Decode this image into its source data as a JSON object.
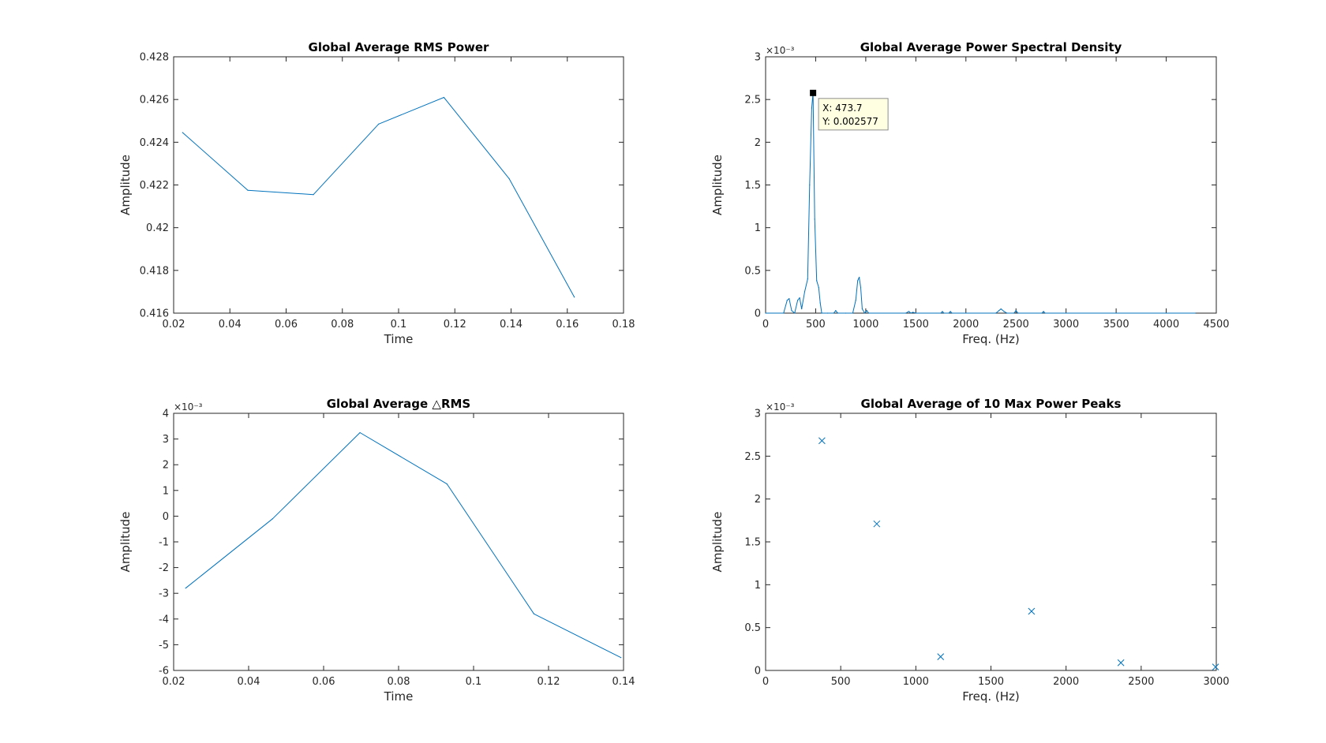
{
  "colors": {
    "series": "#0072BD",
    "axis": "#262626",
    "tooltip_bg": "#FFFFE1"
  },
  "chart_data": [
    {
      "id": "rms",
      "type": "line",
      "title": "Global Average RMS Power",
      "xlabel": "Time",
      "ylabel": "Amplitude",
      "xlim": [
        0.02,
        0.18
      ],
      "ylim": [
        0.416,
        0.428
      ],
      "xticks": [
        0.02,
        0.04,
        0.06,
        0.08,
        0.1,
        0.12,
        0.14,
        0.16,
        0.18
      ],
      "xtick_labels": [
        "0.02",
        "0.04",
        "0.06",
        "0.08",
        "0.1",
        "0.12",
        "0.14",
        "0.16",
        "0.18"
      ],
      "yticks": [
        0.416,
        0.418,
        0.42,
        0.422,
        0.424,
        0.426,
        0.428
      ],
      "ytick_labels": [
        "0.416",
        "0.418",
        "0.42",
        "0.422",
        "0.424",
        "0.426",
        "0.428"
      ],
      "exponent": "",
      "x": [
        0.0232,
        0.0464,
        0.0697,
        0.0929,
        0.1161,
        0.1393,
        0.1625
      ],
      "y": [
        0.42445,
        0.42175,
        0.42155,
        0.42485,
        0.4261,
        0.4223,
        0.41675
      ]
    },
    {
      "id": "psd",
      "type": "line",
      "title": "Global Average Power Spectral Density",
      "xlabel": "Freq. (Hz)",
      "ylabel": "Amplitude",
      "xlim": [
        0,
        4500
      ],
      "ylim": [
        0,
        3
      ],
      "xticks": [
        0,
        500,
        1000,
        1500,
        2000,
        2500,
        3000,
        3500,
        4000,
        4500
      ],
      "xtick_labels": [
        "0",
        "500",
        "1000",
        "1500",
        "2000",
        "2500",
        "3000",
        "3500",
        "4000",
        "4500"
      ],
      "yticks": [
        0,
        0.5,
        1,
        1.5,
        2,
        2.5,
        3
      ],
      "ytick_labels": [
        "0",
        "0.5",
        "1",
        "1.5",
        "2",
        "2.5",
        "3"
      ],
      "exponent": "×10⁻³",
      "x": [
        0,
        180,
        215,
        235,
        260,
        290,
        320,
        340,
        360,
        390,
        420,
        440,
        460,
        473.7,
        490,
        510,
        530,
        545,
        560,
        620,
        680,
        700,
        720,
        800,
        870,
        900,
        920,
        935,
        950,
        965,
        990,
        1010,
        1030,
        1400,
        1430,
        1450,
        1470,
        1500,
        1750,
        1765,
        1780,
        1830,
        1845,
        1860,
        2300,
        2330,
        2350,
        2380,
        2410,
        2480,
        2500,
        2520,
        2760,
        2775,
        2790,
        4290
      ],
      "y": [
        0,
        0,
        0.15,
        0.17,
        0.03,
        0,
        0.15,
        0.18,
        0.05,
        0.25,
        0.4,
        1.5,
        2.4,
        2.577,
        1.1,
        0.38,
        0.3,
        0.12,
        0,
        0,
        0,
        0.03,
        0,
        0,
        0,
        0.15,
        0.38,
        0.42,
        0.3,
        0.05,
        0,
        0.03,
        0,
        0,
        0.02,
        0,
        0.01,
        0,
        0,
        0.02,
        0,
        0,
        0.02,
        0,
        0,
        0.03,
        0.05,
        0.02,
        0,
        0,
        0.03,
        0,
        0,
        0.02,
        0,
        0
      ],
      "datatip": {
        "x": 473.7,
        "y": 0.002577,
        "x_text": "X: 473.7",
        "y_text": "Y: 0.002577"
      }
    },
    {
      "id": "drms",
      "type": "line",
      "title": "Global Average △RMS",
      "xlabel": "Time",
      "ylabel": "Amplitude",
      "xlim": [
        0.02,
        0.14
      ],
      "ylim": [
        -6,
        4
      ],
      "xticks": [
        0.02,
        0.04,
        0.06,
        0.08,
        0.1,
        0.12,
        0.14
      ],
      "xtick_labels": [
        "0.02",
        "0.04",
        "0.06",
        "0.08",
        "0.1",
        "0.12",
        "0.14"
      ],
      "yticks": [
        -6,
        -5,
        -4,
        -3,
        -2,
        -1,
        0,
        1,
        2,
        3,
        4
      ],
      "ytick_labels": [
        "-6",
        "-5",
        "-4",
        "-3",
        "-2",
        "-1",
        "0",
        "1",
        "2",
        "3",
        "4"
      ],
      "exponent": "×10⁻³",
      "x": [
        0.0232,
        0.0464,
        0.0697,
        0.0929,
        0.1161,
        0.1393
      ],
      "y": [
        -2.8,
        -0.1,
        3.25,
        1.25,
        -3.8,
        -5.5
      ]
    },
    {
      "id": "peaks",
      "type": "scatter",
      "title": "Global Average of 10 Max Power Peaks",
      "xlabel": "Freq. (Hz)",
      "ylabel": "Amplitude",
      "xlim": [
        0,
        3000
      ],
      "ylim": [
        0,
        3
      ],
      "xticks": [
        0,
        500,
        1000,
        1500,
        2000,
        2500,
        3000
      ],
      "xtick_labels": [
        "0",
        "500",
        "1000",
        "1500",
        "2000",
        "2500",
        "3000"
      ],
      "yticks": [
        0,
        0.5,
        1,
        1.5,
        2,
        2.5,
        3
      ],
      "ytick_labels": [
        "0",
        "0.5",
        "1",
        "1.5",
        "2",
        "2.5",
        "3"
      ],
      "exponent": "×10⁻³",
      "marker": "x",
      "x": [
        375,
        740,
        1165,
        1770,
        2365,
        2995
      ],
      "y": [
        2.68,
        1.71,
        0.16,
        0.69,
        0.09,
        0.04
      ]
    }
  ]
}
